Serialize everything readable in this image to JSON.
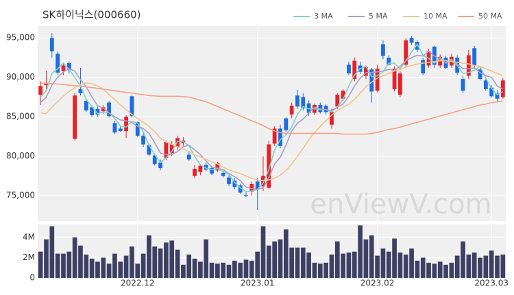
{
  "chart_data": {
    "type": "candlestick",
    "title": "SK하이닉스(000660)",
    "watermark": "enViewV.com",
    "categories": [
      null,
      null,
      null,
      null,
      null,
      null,
      null,
      null,
      null,
      null,
      null,
      null,
      null,
      null,
      null,
      null,
      null,
      "2022.12",
      null,
      null,
      null,
      null,
      null,
      null,
      null,
      null,
      null,
      null,
      null,
      null,
      null,
      null,
      null,
      null,
      null,
      null,
      null,
      null,
      "2023.01",
      null,
      null,
      null,
      null,
      null,
      null,
      null,
      null,
      null,
      null,
      null,
      null,
      null,
      null,
      null,
      null,
      null,
      null,
      null,
      null,
      "2023.02",
      null,
      null,
      null,
      null,
      null,
      null,
      null,
      null,
      null,
      null,
      null,
      null,
      null,
      null,
      null,
      null,
      null,
      null,
      null,
      "2023.03",
      null,
      null
    ],
    "open": [
      87800,
      89000,
      95000,
      93000,
      90800,
      91800,
      82200,
      88500,
      87000,
      86200,
      86000,
      85700,
      86800,
      84200,
      83500,
      83200,
      87600,
      84300,
      82600,
      81400,
      80100,
      79200,
      79800,
      80400,
      81200,
      81700,
      80200,
      77500,
      78000,
      78900,
      78500,
      78200,
      77900,
      77300,
      76900,
      76300,
      75100,
      75500,
      76800,
      76200,
      76000,
      81600,
      83500,
      84800,
      85300,
      87700,
      87500,
      86700,
      85500,
      86500,
      86400,
      84000,
      86300,
      87300,
      91600,
      89800,
      91500,
      90200,
      91000,
      88300,
      94200,
      92500,
      88500,
      87800,
      91600,
      95000,
      94500,
      92200,
      91500,
      93900,
      91500,
      92500,
      91500,
      92500,
      89800,
      90200,
      93700,
      91000,
      89600,
      88700,
      88000,
      87500
    ],
    "high": [
      89500,
      90800,
      95600,
      93300,
      91900,
      92000,
      88000,
      91200,
      87300,
      86400,
      86300,
      86500,
      87000,
      84500,
      83800,
      85200,
      87700,
      84400,
      82900,
      81500,
      80300,
      79600,
      82000,
      81900,
      82600,
      82400,
      80500,
      78900,
      79000,
      79200,
      78800,
      79300,
      78100,
      77600,
      77200,
      76500,
      75600,
      76800,
      77200,
      80000,
      82000,
      83800,
      84000,
      85000,
      86800,
      88400,
      88000,
      87100,
      86700,
      86800,
      86600,
      86000,
      88000,
      88500,
      92000,
      92500,
      92000,
      91500,
      91200,
      91600,
      94700,
      92800,
      91400,
      90800,
      95000,
      95200,
      94700,
      92500,
      93600,
      94000,
      92900,
      92700,
      93000,
      92800,
      90200,
      93500,
      94000,
      91200,
      89800,
      89000,
      88400,
      89900
    ],
    "low": [
      86500,
      88500,
      92500,
      90300,
      90300,
      90500,
      82000,
      87700,
      85600,
      85000,
      85000,
      85400,
      84900,
      82800,
      83100,
      82300,
      84900,
      82400,
      81200,
      80000,
      78800,
      78200,
      79500,
      80000,
      80800,
      81300,
      79400,
      77200,
      77600,
      78100,
      77600,
      78000,
      77300,
      76200,
      75800,
      75200,
      74800,
      75000,
      73200,
      75600,
      75800,
      81300,
      81000,
      83100,
      84800,
      86000,
      85800,
      85100,
      85200,
      85400,
      85300,
      83500,
      86000,
      87000,
      90300,
      89500,
      90400,
      89800,
      86800,
      88100,
      92300,
      91500,
      88200,
      87500,
      91200,
      94100,
      93200,
      90300,
      91200,
      91200,
      91200,
      91000,
      91200,
      90300,
      88000,
      89800,
      91200,
      89600,
      88300,
      87400,
      86900,
      87300
    ],
    "close": [
      88900,
      89300,
      93300,
      90600,
      91500,
      90900,
      87700,
      88000,
      85800,
      85200,
      85300,
      86200,
      85100,
      83000,
      83200,
      85000,
      85100,
      82600,
      81500,
      80200,
      79000,
      78500,
      81800,
      81500,
      82300,
      82000,
      79600,
      78400,
      78800,
      78300,
      77800,
      79100,
      77500,
      76500,
      76100,
      75400,
      75000,
      76500,
      75800,
      77500,
      81500,
      83500,
      81300,
      83300,
      86400,
      86300,
      86100,
      85500,
      86500,
      85600,
      85600,
      85600,
      87800,
      88300,
      90500,
      92100,
      90700,
      91300,
      88200,
      91100,
      92700,
      91600,
      91100,
      90500,
      94700,
      94400,
      93500,
      90500,
      93300,
      91600,
      92600,
      91200,
      92600,
      90600,
      88300,
      92800,
      91500,
      89800,
      88500,
      87600,
      87300,
      89600
    ],
    "up_color": "#e8202a",
    "down_color": "#1d6ce0",
    "series": [
      {
        "name": "3 MA",
        "color": "#7fd3c4",
        "values": [
          87500,
          88300,
          90500,
          91100,
          91800,
          91000,
          90000,
          88900,
          87200,
          86300,
          85400,
          85600,
          85500,
          84800,
          83800,
          83700,
          84400,
          84200,
          83100,
          81400,
          80200,
          79200,
          79800,
          80600,
          81900,
          81900,
          81300,
          80000,
          78900,
          78500,
          78300,
          78400,
          78100,
          77700,
          76700,
          76000,
          75500,
          75600,
          75800,
          76600,
          78300,
          80800,
          82100,
          82700,
          83700,
          85300,
          86300,
          86000,
          86000,
          85900,
          85900,
          85600,
          86300,
          87200,
          88900,
          90300,
          91100,
          91400,
          90100,
          90200,
          90700,
          91800,
          91800,
          91100,
          92100,
          93200,
          94200,
          92800,
          92400,
          91800,
          92500,
          91800,
          92100,
          91500,
          90500,
          90600,
          90900,
          91400,
          89900,
          88600,
          87800,
          88200
        ]
      },
      {
        "name": "5 MA",
        "color": "#ab9cc6",
        "values": [
          86800,
          87500,
          89000,
          90000,
          90700,
          91100,
          90800,
          89700,
          88800,
          87500,
          86400,
          86100,
          85500,
          85000,
          84600,
          84500,
          84300,
          83800,
          83500,
          82900,
          81700,
          80400,
          80200,
          80200,
          80600,
          81200,
          81400,
          80800,
          80200,
          79400,
          78600,
          78500,
          78300,
          77800,
          77400,
          76900,
          76100,
          75900,
          75800,
          76000,
          77300,
          79000,
          79900,
          81400,
          83200,
          84200,
          84700,
          85500,
          86200,
          86000,
          85900,
          85800,
          86200,
          86600,
          87600,
          88900,
          89900,
          90600,
          90600,
          90700,
          90800,
          91000,
          90900,
          91400,
          92100,
          92500,
          92800,
          92700,
          93300,
          92700,
          92300,
          91800,
          92300,
          91700,
          91100,
          91100,
          91200,
          90600,
          90200,
          90000,
          88900,
          88500
        ]
      },
      {
        "name": "10 MA",
        "color": "#f2c48d",
        "values": [
          85500,
          85400,
          86200,
          86900,
          87600,
          88200,
          88700,
          89100,
          89300,
          89200,
          88900,
          88500,
          87800,
          87200,
          86500,
          85900,
          85300,
          84800,
          84300,
          83800,
          83100,
          82300,
          81800,
          81500,
          81200,
          80900,
          80600,
          80200,
          79900,
          79600,
          79300,
          79000,
          78600,
          78300,
          78000,
          77800,
          77500,
          77200,
          77000,
          76900,
          77000,
          77200,
          77600,
          78200,
          79000,
          80000,
          81000,
          82100,
          83000,
          83800,
          84500,
          85200,
          85800,
          86200,
          86600,
          87200,
          88000,
          88800,
          89400,
          89900,
          90200,
          90500,
          90800,
          91000,
          91300,
          91500,
          91700,
          91800,
          91900,
          92000,
          92100,
          92100,
          92000,
          91900,
          91800,
          91700,
          91500,
          91400,
          91100,
          90800,
          90500,
          90200
        ]
      },
      {
        "name": "50 MA",
        "color": "#f4a08a",
        "values": [
          89300,
          89250,
          89200,
          89150,
          89100,
          89000,
          88950,
          88900,
          88800,
          88700,
          88600,
          88500,
          88400,
          88300,
          88200,
          88100,
          88000,
          87900,
          87800,
          87700,
          87650,
          87600,
          87600,
          87600,
          87600,
          87550,
          87500,
          87300,
          87100,
          86900,
          86600,
          86300,
          86000,
          85700,
          85400,
          85100,
          84800,
          84500,
          84200,
          83900,
          83500,
          83200,
          83000,
          82900,
          82900,
          82900,
          82900,
          82900,
          82900,
          82900,
          82900,
          82900,
          82900,
          82800,
          82800,
          82800,
          82800,
          82800,
          82900,
          83000,
          83200,
          83400,
          83500,
          83700,
          83900,
          84100,
          84300,
          84500,
          84700,
          84900,
          85100,
          85300,
          85500,
          85700,
          85900,
          86100,
          86300,
          86500,
          86600,
          86800,
          86900,
          87000
        ]
      }
    ],
    "ylim": [
      71800,
      96500
    ],
    "yticks": [
      {
        "value": 75000,
        "label": "75,000"
      },
      {
        "value": 80000,
        "label": "80,000"
      },
      {
        "value": 85000,
        "label": "85,000"
      },
      {
        "value": 90000,
        "label": "90,000"
      },
      {
        "value": 95000,
        "label": "95,000"
      }
    ],
    "grid": true,
    "volume": {
      "color": "#3d3f63",
      "ylim": [
        0,
        5300000
      ],
      "yticks": [
        0,
        {
          "value": 2000000,
          "label": "2M"
        },
        {
          "value": 4000000,
          "label": "4M"
        }
      ],
      "values": [
        2600000,
        3800000,
        5100000,
        2400000,
        2400000,
        2600000,
        4000000,
        3200000,
        2300000,
        1900000,
        1600000,
        2000000,
        1400000,
        2400000,
        1600000,
        2200000,
        3100000,
        1400000,
        2400000,
        4200000,
        3100000,
        2900000,
        3500000,
        3700000,
        2800000,
        1300000,
        2300000,
        1900000,
        1600000,
        3800000,
        1500000,
        1400000,
        1500000,
        1300000,
        1700000,
        1500000,
        1800000,
        1700000,
        2600000,
        5100000,
        3200000,
        3600000,
        3800000,
        4800000,
        3000000,
        3000000,
        3000000,
        2500000,
        1500000,
        1400000,
        1500000,
        2300000,
        3600000,
        2400000,
        2500000,
        2600000,
        5200000,
        3800000,
        4200000,
        2200000,
        2900000,
        2600000,
        3900000,
        2500000,
        2300000,
        2900000,
        1700000,
        2000000,
        1500000,
        1400000,
        1600000,
        1300000,
        1500000,
        2200000,
        3600000,
        2300000,
        2500000,
        2000000,
        2200000,
        2700000,
        2200000,
        2300000
      ]
    }
  }
}
